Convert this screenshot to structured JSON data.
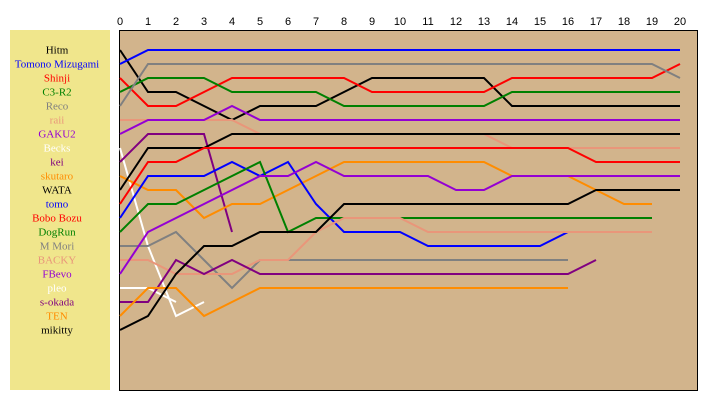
{
  "chart_data": {
    "type": "line",
    "x": [
      0,
      1,
      2,
      3,
      4,
      5,
      6,
      7,
      8,
      9,
      10,
      11,
      12,
      13,
      14,
      15,
      16,
      17,
      18,
      19,
      20
    ],
    "xlim": [
      0,
      20
    ],
    "ylim": [
      1,
      21
    ],
    "series": [
      {
        "name": "Hitm",
        "color": "#000000",
        "values": [
          1,
          4,
          4,
          5,
          6,
          5,
          5,
          5,
          4,
          3,
          3,
          3,
          3,
          3,
          5,
          5,
          5,
          5,
          5,
          5,
          5
        ]
      },
      {
        "name": "Tomono Mizugami",
        "color": "#0000ff",
        "values": [
          2,
          1,
          1,
          1,
          1,
          1,
          1,
          1,
          1,
          1,
          1,
          1,
          1,
          1,
          1,
          1,
          1,
          1,
          1,
          1,
          1
        ]
      },
      {
        "name": "Shinji",
        "color": "#ff0000",
        "values": [
          3,
          5,
          5,
          4,
          3,
          3,
          3,
          3,
          3,
          4,
          4,
          4,
          4,
          4,
          3,
          3,
          3,
          3,
          3,
          3,
          2
        ]
      },
      {
        "name": "C3-R2",
        "color": "#008000",
        "values": [
          4,
          3,
          3,
          3,
          4,
          4,
          4,
          4,
          5,
          5,
          5,
          5,
          5,
          5,
          4,
          4,
          4,
          4,
          4,
          4,
          4
        ]
      },
      {
        "name": "Reco",
        "color": "#808080",
        "values": [
          5,
          2,
          2,
          2,
          2,
          2,
          2,
          2,
          2,
          2,
          2,
          2,
          2,
          2,
          2,
          2,
          2,
          2,
          2,
          2,
          3
        ]
      },
      {
        "name": "raii",
        "color": "#e9967a",
        "values": [
          6,
          6,
          6,
          6,
          6,
          7,
          7,
          7,
          7,
          7,
          7,
          7,
          7,
          7,
          8,
          8,
          8,
          8,
          8,
          8,
          8
        ]
      },
      {
        "name": "GAKU2",
        "color": "#9400d3",
        "values": [
          7,
          6,
          6,
          6,
          5,
          6,
          6,
          6,
          6,
          6,
          6,
          6,
          6,
          6,
          6,
          6,
          6,
          6,
          6,
          6,
          6
        ]
      },
      {
        "name": "Becks",
        "color": "#ffffff",
        "values": [
          8,
          15,
          20,
          19,
          null,
          null,
          null,
          null,
          null,
          null,
          null,
          null,
          null,
          null,
          null,
          null,
          null,
          null,
          null,
          null,
          null
        ]
      },
      {
        "name": "kei",
        "color": "#800080",
        "values": [
          9,
          7,
          7,
          7,
          14,
          null,
          null,
          null,
          null,
          null,
          null,
          null,
          null,
          null,
          null,
          null,
          null,
          null,
          null,
          null,
          null
        ]
      },
      {
        "name": "skutaro",
        "color": "#ff8c00",
        "values": [
          10,
          11,
          11,
          13,
          12,
          12,
          11,
          10,
          9,
          9,
          9,
          9,
          9,
          9,
          10,
          10,
          10,
          11,
          12,
          12,
          null
        ]
      },
      {
        "name": "WATA",
        "color": "#000000",
        "values": [
          11,
          8,
          8,
          8,
          7,
          7,
          7,
          7,
          7,
          7,
          7,
          7,
          7,
          7,
          7,
          7,
          7,
          7,
          7,
          7,
          7
        ]
      },
      {
        "name": "tomo",
        "color": "#0000ff",
        "values": [
          13,
          10,
          10,
          10,
          9,
          10,
          9,
          12,
          14,
          14,
          14,
          15,
          15,
          15,
          15,
          15,
          14,
          14,
          14,
          14,
          null
        ]
      },
      {
        "name": "Bobo Bozu",
        "color": "#ff0000",
        "values": [
          12,
          9,
          9,
          8,
          8,
          8,
          8,
          8,
          8,
          8,
          8,
          8,
          8,
          8,
          8,
          8,
          8,
          9,
          9,
          9,
          9
        ]
      },
      {
        "name": "DogRun",
        "color": "#008000",
        "values": [
          14,
          12,
          12,
          11,
          10,
          9,
          14,
          13,
          13,
          13,
          13,
          13,
          13,
          13,
          13,
          13,
          13,
          13,
          13,
          13,
          null
        ]
      },
      {
        "name": "M Mori",
        "color": "#808080",
        "values": [
          15,
          15,
          14,
          16,
          18,
          16,
          16,
          16,
          16,
          16,
          16,
          16,
          16,
          16,
          16,
          16,
          16,
          null,
          null,
          null,
          null
        ]
      },
      {
        "name": "BACKY",
        "color": "#e9967a",
        "values": [
          16,
          16,
          17,
          17,
          17,
          16,
          16,
          14,
          13,
          13,
          13,
          14,
          14,
          14,
          14,
          14,
          14,
          14,
          14,
          14,
          null
        ]
      },
      {
        "name": "FBevo",
        "color": "#9400d3",
        "values": [
          17,
          14,
          13,
          12,
          11,
          10,
          10,
          9,
          10,
          10,
          10,
          10,
          11,
          11,
          10,
          10,
          10,
          10,
          10,
          10,
          10
        ]
      },
      {
        "name": "pleo",
        "color": "#ffffff",
        "values": [
          18,
          18,
          19,
          null,
          null,
          null,
          null,
          null,
          null,
          null,
          null,
          null,
          null,
          null,
          null,
          null,
          null,
          null,
          null,
          null,
          null
        ]
      },
      {
        "name": "s-okada",
        "color": "#800080",
        "values": [
          19,
          19,
          16,
          17,
          16,
          17,
          17,
          17,
          17,
          17,
          17,
          17,
          17,
          17,
          17,
          17,
          17,
          16,
          null,
          null,
          null
        ]
      },
      {
        "name": "TEN",
        "color": "#ff8c00",
        "values": [
          20,
          18,
          18,
          20,
          19,
          18,
          18,
          18,
          18,
          18,
          18,
          18,
          18,
          18,
          18,
          18,
          18,
          null,
          null,
          null,
          null
        ]
      },
      {
        "name": "mikitty",
        "color": "#000000",
        "values": [
          21,
          20,
          17,
          15,
          15,
          14,
          14,
          14,
          12,
          12,
          12,
          12,
          12,
          12,
          12,
          12,
          12,
          11,
          11,
          11,
          11
        ]
      }
    ]
  }
}
